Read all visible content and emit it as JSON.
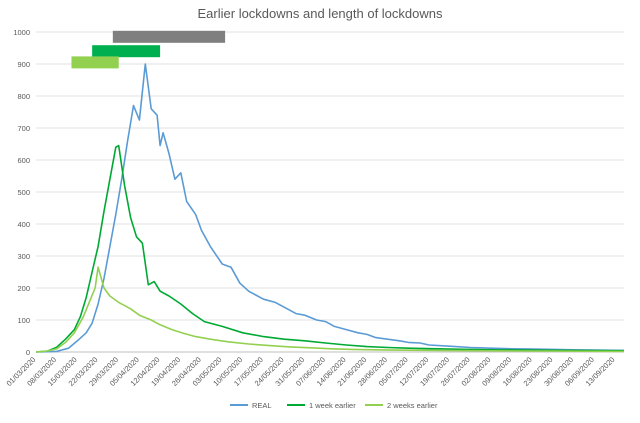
{
  "chart_data": {
    "type": "line",
    "title": "Earlier lockdowns and length of lockdowns",
    "xlabel": "",
    "ylabel": "",
    "ylim": [
      0,
      1000
    ],
    "yticks": [
      0,
      100,
      200,
      300,
      400,
      500,
      600,
      700,
      800,
      900,
      1000
    ],
    "grid": true,
    "legend_position": "bottom",
    "x_tick_labels": [
      "01/03/2020",
      "08/03/2020",
      "15/03/2020",
      "22/03/2020",
      "29/03/2020",
      "05/04/2020",
      "12/04/2020",
      "19/04/2020",
      "26/04/2020",
      "03/05/2020",
      "10/05/2020",
      "17/05/2020",
      "24/05/2020",
      "31/05/2020",
      "07/06/2020",
      "14/06/2020",
      "21/06/2020",
      "28/06/2020",
      "05/07/2020",
      "12/07/2020",
      "19/07/2020",
      "26/07/2020",
      "02/08/2020",
      "09/08/2020",
      "16/08/2020",
      "23/08/2020",
      "30/08/2020",
      "06/09/2020",
      "13/09/2020"
    ],
    "x_start": "01/03/2020",
    "x_end": "16/09/2020",
    "series": [
      {
        "name": "REAL",
        "color": "#5b9bd5",
        "points": [
          [
            "01/03/2020",
            0
          ],
          [
            "08/03/2020",
            2
          ],
          [
            "12/03/2020",
            12
          ],
          [
            "15/03/2020",
            35
          ],
          [
            "18/03/2020",
            60
          ],
          [
            "20/03/2020",
            90
          ],
          [
            "22/03/2020",
            150
          ],
          [
            "24/03/2020",
            230
          ],
          [
            "26/03/2020",
            330
          ],
          [
            "28/03/2020",
            430
          ],
          [
            "30/03/2020",
            540
          ],
          [
            "01/04/2020",
            660
          ],
          [
            "03/04/2020",
            770
          ],
          [
            "05/04/2020",
            725
          ],
          [
            "07/04/2020",
            900
          ],
          [
            "09/04/2020",
            760
          ],
          [
            "11/04/2020",
            740
          ],
          [
            "12/04/2020",
            645
          ],
          [
            "13/04/2020",
            685
          ],
          [
            "15/04/2020",
            620
          ],
          [
            "17/04/2020",
            540
          ],
          [
            "19/04/2020",
            560
          ],
          [
            "21/04/2020",
            470
          ],
          [
            "24/04/2020",
            430
          ],
          [
            "26/04/2020",
            380
          ],
          [
            "29/04/2020",
            330
          ],
          [
            "03/05/2020",
            275
          ],
          [
            "06/05/2020",
            265
          ],
          [
            "09/05/2020",
            215
          ],
          [
            "12/05/2020",
            190
          ],
          [
            "17/05/2020",
            165
          ],
          [
            "21/05/2020",
            155
          ],
          [
            "24/05/2020",
            140
          ],
          [
            "28/05/2020",
            120
          ],
          [
            "31/05/2020",
            115
          ],
          [
            "04/06/2020",
            100
          ],
          [
            "07/06/2020",
            95
          ],
          [
            "10/06/2020",
            80
          ],
          [
            "14/06/2020",
            70
          ],
          [
            "18/06/2020",
            60
          ],
          [
            "21/06/2020",
            55
          ],
          [
            "24/06/2020",
            45
          ],
          [
            "28/06/2020",
            40
          ],
          [
            "02/07/2020",
            35
          ],
          [
            "05/07/2020",
            30
          ],
          [
            "09/07/2020",
            28
          ],
          [
            "12/07/2020",
            22
          ],
          [
            "19/07/2020",
            18
          ],
          [
            "26/07/2020",
            14
          ],
          [
            "02/08/2020",
            12
          ],
          [
            "09/08/2020",
            10
          ],
          [
            "16/08/2020",
            9
          ],
          [
            "23/08/2020",
            8
          ],
          [
            "30/08/2020",
            7
          ],
          [
            "06/09/2020",
            6
          ],
          [
            "16/09/2020",
            5
          ]
        ]
      },
      {
        "name": "1 week earlier",
        "color": "#00a933",
        "points": [
          [
            "01/03/2020",
            0
          ],
          [
            "05/03/2020",
            3
          ],
          [
            "08/03/2020",
            15
          ],
          [
            "11/03/2020",
            40
          ],
          [
            "14/03/2020",
            70
          ],
          [
            "16/03/2020",
            110
          ],
          [
            "18/03/2020",
            170
          ],
          [
            "20/03/2020",
            250
          ],
          [
            "22/03/2020",
            330
          ],
          [
            "24/03/2020",
            440
          ],
          [
            "26/03/2020",
            540
          ],
          [
            "28/03/2020",
            640
          ],
          [
            "29/03/2020",
            645
          ],
          [
            "31/03/2020",
            520
          ],
          [
            "02/04/2020",
            420
          ],
          [
            "04/04/2020",
            360
          ],
          [
            "06/04/2020",
            340
          ],
          [
            "08/04/2020",
            210
          ],
          [
            "10/04/2020",
            220
          ],
          [
            "12/04/2020",
            190
          ],
          [
            "15/04/2020",
            175
          ],
          [
            "19/04/2020",
            150
          ],
          [
            "23/04/2020",
            120
          ],
          [
            "27/04/2020",
            95
          ],
          [
            "03/05/2020",
            80
          ],
          [
            "10/05/2020",
            60
          ],
          [
            "17/05/2020",
            48
          ],
          [
            "24/05/2020",
            40
          ],
          [
            "31/05/2020",
            35
          ],
          [
            "07/06/2020",
            28
          ],
          [
            "14/06/2020",
            22
          ],
          [
            "21/06/2020",
            17
          ],
          [
            "28/06/2020",
            14
          ],
          [
            "05/07/2020",
            12
          ],
          [
            "19/07/2020",
            9
          ],
          [
            "02/08/2020",
            7
          ],
          [
            "16/08/2020",
            6
          ],
          [
            "30/08/2020",
            5
          ],
          [
            "16/09/2020",
            4
          ]
        ]
      },
      {
        "name": "2 weeks earlier",
        "color": "#92d050",
        "points": [
          [
            "01/03/2020",
            0
          ],
          [
            "05/03/2020",
            3
          ],
          [
            "08/03/2020",
            10
          ],
          [
            "11/03/2020",
            30
          ],
          [
            "14/03/2020",
            60
          ],
          [
            "17/03/2020",
            110
          ],
          [
            "19/03/2020",
            155
          ],
          [
            "21/03/2020",
            200
          ],
          [
            "22/03/2020",
            265
          ],
          [
            "24/03/2020",
            200
          ],
          [
            "26/03/2020",
            175
          ],
          [
            "29/03/2020",
            155
          ],
          [
            "02/04/2020",
            135
          ],
          [
            "05/04/2020",
            115
          ],
          [
            "09/04/2020",
            100
          ],
          [
            "12/04/2020",
            85
          ],
          [
            "16/04/2020",
            70
          ],
          [
            "20/04/2020",
            58
          ],
          [
            "24/04/2020",
            48
          ],
          [
            "29/04/2020",
            40
          ],
          [
            "05/05/2020",
            32
          ],
          [
            "12/05/2020",
            25
          ],
          [
            "19/05/2020",
            20
          ],
          [
            "26/05/2020",
            16
          ],
          [
            "02/06/2020",
            13
          ],
          [
            "09/06/2020",
            10
          ],
          [
            "16/06/2020",
            8
          ],
          [
            "30/06/2020",
            6
          ],
          [
            "14/07/2020",
            5
          ],
          [
            "28/07/2020",
            4
          ],
          [
            "16/08/2020",
            3
          ],
          [
            "16/09/2020",
            2
          ]
        ]
      }
    ],
    "lockdown_bars": [
      {
        "color": "#7f7f7f",
        "start": "27/03/2020",
        "end": "04/05/2020",
        "value": 985
      },
      {
        "color": "#00b050",
        "start": "20/03/2020",
        "end": "12/04/2020",
        "value": 940
      },
      {
        "color": "#92d050",
        "start": "13/03/2020",
        "end": "29/03/2020",
        "value": 905
      }
    ]
  }
}
